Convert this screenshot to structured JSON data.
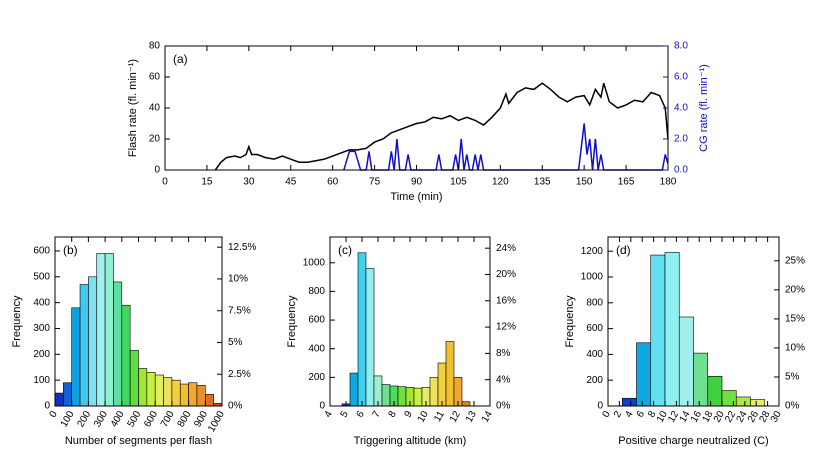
{
  "chart_data": [
    {
      "type": "line",
      "label": "(a)",
      "x_label": "Time (min)",
      "y_label": "Flash rate (fl. min⁻¹)",
      "y2_label": "CG rate (fl. min⁻¹)",
      "xlim": [
        0,
        180
      ],
      "xticks": [
        0,
        15,
        30,
        45,
        60,
        75,
        90,
        105,
        120,
        135,
        150,
        165,
        180
      ],
      "ylim": [
        0,
        80
      ],
      "yticks": [
        0,
        20,
        40,
        60,
        80
      ],
      "y2lim": [
        0,
        8
      ],
      "y2ticks": [
        {
          "value": 0,
          "label": "0.0"
        },
        {
          "value": 2,
          "label": "2.0"
        },
        {
          "value": 4,
          "label": "4.0"
        },
        {
          "value": 6,
          "label": "6.0"
        },
        {
          "value": 8,
          "label": "8.0"
        }
      ],
      "y2_color": "#1010c8",
      "series": [
        {
          "color": "#000000",
          "x": [
            18,
            20,
            22,
            25,
            27,
            29,
            30,
            31,
            33,
            36,
            39,
            42,
            45,
            48,
            51,
            54,
            57,
            60,
            63,
            66,
            69,
            72,
            75,
            78,
            81,
            84,
            87,
            90,
            93,
            96,
            99,
            102,
            105,
            108,
            111,
            114,
            117,
            120,
            122,
            123,
            126,
            129,
            132,
            135,
            138,
            141,
            144,
            147,
            150,
            152,
            154,
            156,
            157,
            159,
            162,
            165,
            168,
            171,
            174,
            177,
            179,
            180
          ],
          "values": [
            0,
            5,
            8,
            9,
            8,
            10,
            15,
            10,
            10,
            8,
            7,
            9,
            7,
            5,
            5,
            6,
            7,
            9,
            11,
            13,
            13,
            14,
            18,
            20,
            24,
            26,
            28,
            30,
            31,
            34,
            33,
            35,
            32,
            34,
            32,
            29,
            34,
            40,
            49,
            43,
            50,
            53,
            52,
            56,
            52,
            47,
            44,
            47,
            48,
            42,
            52,
            47,
            56,
            44,
            40,
            42,
            45,
            44,
            50,
            48,
            40,
            20
          ]
        },
        {
          "color": "#1010c8",
          "axis": "y2",
          "x": [
            64,
            66,
            68,
            70,
            72,
            73,
            74,
            80,
            81,
            82,
            83,
            84,
            86,
            87,
            88,
            97,
            98,
            99,
            103,
            104,
            105,
            106,
            107,
            108,
            109,
            110,
            111,
            112,
            113,
            114,
            148,
            150,
            151,
            152,
            153,
            154,
            155,
            156,
            157,
            160,
            178,
            179,
            180
          ],
          "values": [
            0,
            1.2,
            1.2,
            0,
            0,
            1.2,
            0,
            0,
            1.2,
            0,
            2,
            0,
            0,
            1,
            0,
            0,
            1,
            0,
            0,
            1,
            0,
            2,
            0,
            1,
            0,
            0,
            1,
            0,
            1,
            0,
            0,
            3,
            1,
            2,
            0,
            2,
            0,
            1,
            0,
            0,
            0,
            1,
            0.4
          ]
        }
      ]
    },
    {
      "type": "histogram",
      "label": "(b)",
      "x_label": "Number of segments per flash",
      "y_label": "Frequency",
      "xlim": [
        0,
        1000
      ],
      "xticks": [
        0,
        100,
        200,
        300,
        400,
        500,
        600,
        700,
        800,
        900,
        1000
      ],
      "ylim": [
        0,
        654
      ],
      "yticks": [
        0,
        100,
        200,
        300,
        400,
        500,
        600
      ],
      "y2lim": [
        0,
        13.3
      ],
      "y2ticks": [
        {
          "value": 0,
          "label": "0%"
        },
        {
          "value": 2.5,
          "label": "2.5%"
        },
        {
          "value": 5,
          "label": "5%"
        },
        {
          "value": 7.5,
          "label": "7.5%"
        },
        {
          "value": 10,
          "label": "10%"
        },
        {
          "value": 12.5,
          "label": "12.5%"
        }
      ],
      "bins": [
        0,
        50,
        100,
        150,
        200,
        250,
        300,
        350,
        400,
        450,
        500,
        550,
        600,
        650,
        700,
        750,
        800,
        850,
        900,
        950,
        1000
      ],
      "values": [
        50,
        90,
        380,
        470,
        500,
        590,
        590,
        480,
        390,
        215,
        145,
        130,
        120,
        110,
        100,
        85,
        90,
        80,
        45,
        10
      ],
      "colors": [
        "#1030c0",
        "#1060d8",
        "#10a0e0",
        "#40c8f0",
        "#80e0f0",
        "#a0f0f0",
        "#90f0d0",
        "#60e0a0",
        "#40d860",
        "#60e040",
        "#a0e830",
        "#c8f040",
        "#e0f060",
        "#f0e060",
        "#f0d040",
        "#f0c030",
        "#f0a830",
        "#e89030",
        "#e07020",
        "#d05010"
      ]
    },
    {
      "type": "histogram",
      "label": "(c)",
      "x_label": "Triggering altitude (km)",
      "y_label": "Frequency",
      "xlim": [
        4,
        14
      ],
      "xticks": [
        4,
        5,
        6,
        7,
        8,
        9,
        10,
        11,
        12,
        13,
        14
      ],
      "ylim": [
        0,
        1180
      ],
      "yticks": [
        0,
        200,
        400,
        600,
        800,
        1000
      ],
      "y2lim": [
        0,
        25.7
      ],
      "y2ticks": [
        {
          "value": 0,
          "label": "0%"
        },
        {
          "value": 4,
          "label": "4%"
        },
        {
          "value": 8,
          "label": "8%"
        },
        {
          "value": 12,
          "label": "12%"
        },
        {
          "value": 16,
          "label": "16%"
        },
        {
          "value": 20,
          "label": "20%"
        },
        {
          "value": 24,
          "label": "24%"
        }
      ],
      "bins": [
        4.75,
        5.25,
        5.75,
        6.25,
        6.75,
        7.25,
        7.75,
        8.25,
        8.75,
        9.25,
        9.75,
        10.25,
        10.75,
        11.25,
        11.75,
        12.25,
        12.75
      ],
      "values": [
        15,
        230,
        1070,
        960,
        210,
        150,
        140,
        135,
        130,
        125,
        130,
        200,
        300,
        450,
        200,
        30
      ],
      "colors": [
        "#1040c8",
        "#10a8e0",
        "#40d0f0",
        "#90f0f0",
        "#a0f0d0",
        "#70e090",
        "#50d860",
        "#70e040",
        "#a0e830",
        "#c8f040",
        "#e0f060",
        "#f0e060",
        "#f0d040",
        "#f0c030",
        "#f0a830",
        "#e08020"
      ]
    },
    {
      "type": "histogram",
      "label": "(d)",
      "x_label": "Positive charge neutralized (C)",
      "y_label": "Frequency",
      "xlim": [
        0,
        30
      ],
      "xticks": [
        0,
        2,
        4,
        6,
        8,
        10,
        12,
        14,
        16,
        18,
        20,
        22,
        24,
        26,
        28,
        30
      ],
      "ylim": [
        0,
        1310
      ],
      "yticks": [
        0,
        200,
        400,
        600,
        800,
        1000,
        1200
      ],
      "y2lim": [
        0,
        29.1
      ],
      "y2ticks": [
        {
          "value": 0,
          "label": "0%"
        },
        {
          "value": 5,
          "label": "5%"
        },
        {
          "value": 10,
          "label": "10%"
        },
        {
          "value": 15,
          "label": "15%"
        },
        {
          "value": 20,
          "label": "20%"
        },
        {
          "value": 25,
          "label": "25%"
        }
      ],
      "bins": [
        2.5,
        5,
        7.5,
        10,
        12.5,
        15,
        17.5,
        20,
        22.5,
        25,
        27.5
      ],
      "values": [
        60,
        490,
        1170,
        1190,
        690,
        410,
        230,
        120,
        70,
        50
      ],
      "colors": [
        "#1040c8",
        "#10a8e0",
        "#60e0f0",
        "#90f0f0",
        "#a0f0f0",
        "#70e090",
        "#40d040",
        "#70e040",
        "#b0e840",
        "#e0f060"
      ]
    }
  ]
}
